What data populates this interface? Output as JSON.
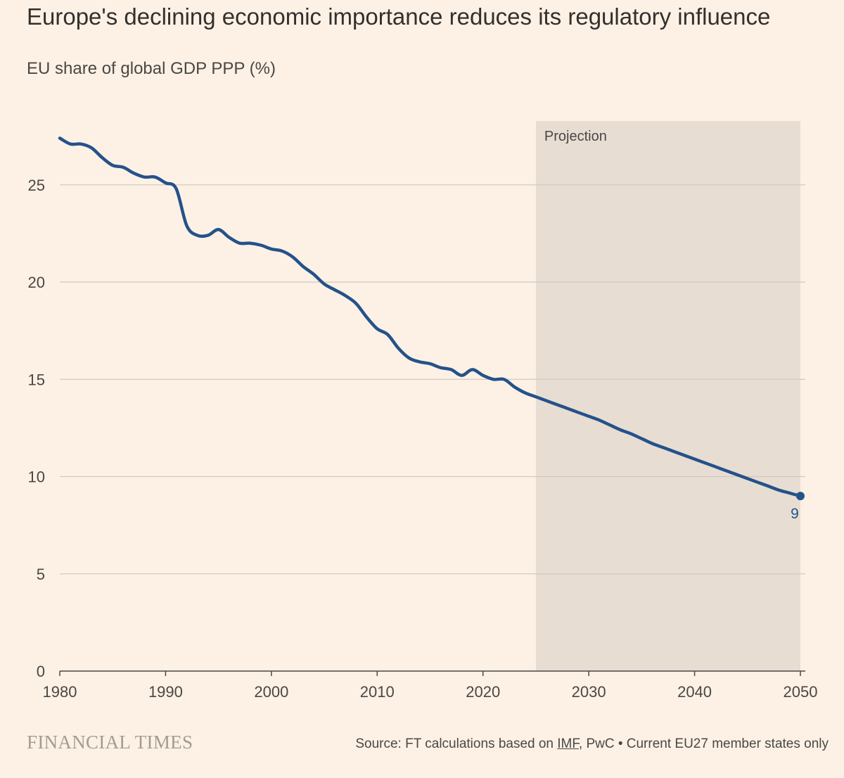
{
  "chart_title": "Europe's declining economic importance reduces its regulatory influence",
  "chart_subtitle": "EU share of global GDP PPP (%)",
  "footer": {
    "logo": "FINANCIAL TIMES",
    "source_prefix": "Source: FT calculations based on ",
    "source_link": "IMF",
    "source_suffix": ", PwC • Current EU27 member states only"
  },
  "colors": {
    "background": "#fdf1e5",
    "line": "#24528a",
    "projection_shade": "#e8ddd3",
    "grid": "#d3c8bc",
    "axis": "#4a4744"
  },
  "chart_data": {
    "type": "line",
    "xlabel": "",
    "ylabel": "",
    "xlim": [
      1980,
      2050
    ],
    "ylim": [
      0,
      27.5
    ],
    "x_ticks": [
      1980,
      1990,
      2000,
      2010,
      2020,
      2030,
      2040,
      2050
    ],
    "y_ticks": [
      0,
      5,
      10,
      15,
      20,
      25
    ],
    "grid": "horizontal",
    "projection": {
      "label": "Projection",
      "from": 2025,
      "to": 2050
    },
    "end_label": "9",
    "series": [
      {
        "x": [
          1980,
          1981,
          1982,
          1983,
          1984,
          1985,
          1986,
          1987,
          1988,
          1989,
          1990,
          1991,
          1992,
          1993,
          1994,
          1995,
          1996,
          1997,
          1998,
          1999,
          2000,
          2001,
          2002,
          2003,
          2004,
          2005,
          2006,
          2007,
          2008,
          2009,
          2010,
          2011,
          2012,
          2013,
          2014,
          2015,
          2016,
          2017,
          2018,
          2019,
          2020,
          2021,
          2022,
          2023,
          2024,
          2025,
          2026,
          2027,
          2028,
          2029,
          2030,
          2031,
          2032,
          2033,
          2034,
          2035,
          2036,
          2037,
          2038,
          2039,
          2040,
          2041,
          2042,
          2043,
          2044,
          2045,
          2046,
          2047,
          2048,
          2049,
          2050
        ],
        "values": [
          27.4,
          27.1,
          27.1,
          26.9,
          26.4,
          26.0,
          25.9,
          25.6,
          25.4,
          25.4,
          25.1,
          24.8,
          22.9,
          22.4,
          22.4,
          22.7,
          22.3,
          22.0,
          22.0,
          21.9,
          21.7,
          21.6,
          21.3,
          20.8,
          20.4,
          19.9,
          19.6,
          19.3,
          18.9,
          18.2,
          17.6,
          17.3,
          16.6,
          16.1,
          15.9,
          15.8,
          15.6,
          15.5,
          15.2,
          15.5,
          15.2,
          15.0,
          15.0,
          14.6,
          14.3,
          14.1,
          13.9,
          13.7,
          13.5,
          13.3,
          13.1,
          12.9,
          12.65,
          12.4,
          12.2,
          11.95,
          11.7,
          11.5,
          11.3,
          11.1,
          10.9,
          10.7,
          10.5,
          10.3,
          10.1,
          9.9,
          9.7,
          9.5,
          9.3,
          9.15,
          9.0
        ]
      }
    ]
  }
}
